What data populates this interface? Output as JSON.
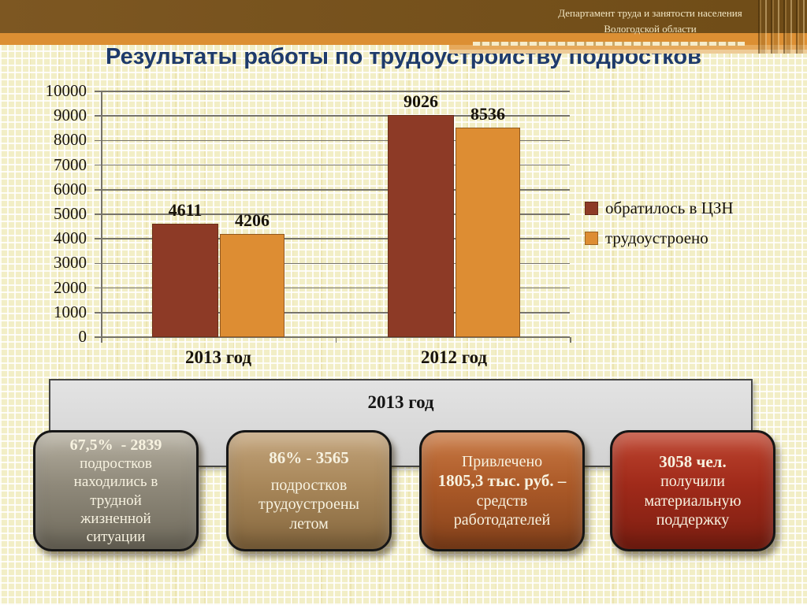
{
  "header": {
    "department_line1": "Департамент труда и занятости населения",
    "department_line2": "Вологодской области"
  },
  "title": "Результаты работы по трудоустройству подростков",
  "theme": {
    "title_color": "#1e3a6b",
    "header_brown": "#78521c",
    "header_orange": "#dc8f33",
    "background": "#f2eec6",
    "series1_color": "#8d3a26",
    "series2_color": "#dd8d33"
  },
  "chart_data": {
    "type": "bar",
    "title": "Результаты работы по трудоустройству подростков",
    "categories": [
      "2013 год",
      "2012 год"
    ],
    "series": [
      {
        "name": "обратилось в ЦЗН",
        "color": "#8d3a26",
        "values": [
          4611,
          9026
        ]
      },
      {
        "name": "трудоустроено",
        "color": "#dd8d33",
        "values": [
          4206,
          8536
        ]
      }
    ],
    "xlabel": "",
    "ylabel": "",
    "ylim": [
      0,
      10000
    ],
    "ytick_step": 1000,
    "yticks": [
      0,
      1000,
      2000,
      3000,
      4000,
      5000,
      6000,
      7000,
      8000,
      9000,
      10000
    ],
    "grid": true,
    "legend_position": "right"
  },
  "banner": {
    "label": "2013 год"
  },
  "callouts": [
    {
      "colors": {
        "top": "#b5afa0",
        "base": "#8f897a",
        "bottom": "#6f6a5c"
      },
      "lines": [
        {
          "text": "67,5%  - 2839",
          "bold": true
        },
        {
          "text": "подростков",
          "bold": false
        },
        {
          "text": "находились в",
          "bold": false
        },
        {
          "text": "трудной",
          "bold": false
        },
        {
          "text": "жизненной",
          "bold": false
        },
        {
          "text": "ситуации",
          "bold": false
        }
      ]
    },
    {
      "colors": {
        "top": "#c3a47b",
        "base": "#a8875a",
        "bottom": "#85673e"
      },
      "lines": [
        {
          "text": "86% - 3565",
          "bold": true
        },
        {
          "text": "",
          "bold": false
        },
        {
          "text": "подростков",
          "bold": false
        },
        {
          "text": "трудоустроены",
          "bold": false
        },
        {
          "text": "летом",
          "bold": false
        }
      ]
    },
    {
      "colors": {
        "top": "#c97a45",
        "base": "#ac5a28",
        "bottom": "#84411b"
      },
      "lines": [
        {
          "text": "Привлечено",
          "bold": false
        },
        {
          "text": "1805,3 тыс. руб. –",
          "bold": true
        },
        {
          "text": "средств",
          "bold": false
        },
        {
          "text": "работодателей",
          "bold": false
        }
      ]
    },
    {
      "colors": {
        "top": "#bf4630",
        "base": "#a02a1a",
        "bottom": "#7c1e11"
      },
      "lines": [
        {
          "text": "3058 чел.",
          "bold": true
        },
        {
          "text": "получили",
          "bold": false
        },
        {
          "text": "материальную",
          "bold": false
        },
        {
          "text": "поддержку",
          "bold": false
        }
      ]
    }
  ]
}
